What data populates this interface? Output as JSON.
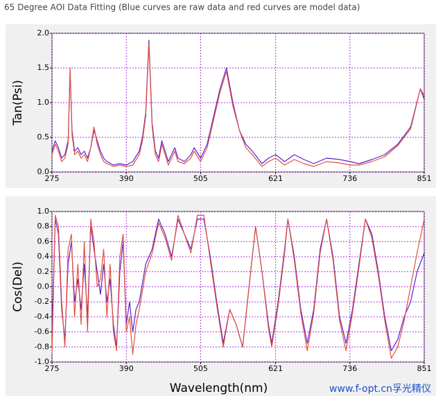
{
  "caption": "65 Degree AOI Data Fitting (Blue curves are raw data and red curves are model data)",
  "watermark": "www.f-opt.cn孚光精仪",
  "chart_data": [
    {
      "type": "line",
      "y_label": "Tan(Psi)",
      "x": [
        275,
        280,
        285,
        290,
        295,
        300,
        303,
        306,
        310,
        315,
        320,
        325,
        330,
        335,
        340,
        345,
        350,
        355,
        360,
        370,
        380,
        390,
        400,
        410,
        415,
        420,
        425,
        430,
        435,
        440,
        445,
        450,
        455,
        460,
        465,
        470,
        480,
        490,
        495,
        505,
        515,
        525,
        535,
        545,
        555,
        565,
        575,
        585,
        600,
        610,
        621,
        635,
        650,
        665,
        680,
        700,
        720,
        736,
        750,
        770,
        790,
        810,
        830,
        845,
        851
      ],
      "series": [
        {
          "color": "#5b1fd0",
          "values": [
            0.3,
            0.45,
            0.35,
            0.2,
            0.25,
            0.45,
            1.45,
            0.6,
            0.3,
            0.35,
            0.25,
            0.3,
            0.2,
            0.35,
            0.6,
            0.45,
            0.3,
            0.2,
            0.15,
            0.1,
            0.12,
            0.1,
            0.15,
            0.3,
            0.5,
            0.85,
            1.9,
            0.7,
            0.3,
            0.2,
            0.45,
            0.3,
            0.15,
            0.25,
            0.35,
            0.2,
            0.15,
            0.25,
            0.35,
            0.2,
            0.4,
            0.8,
            1.2,
            1.5,
            1.0,
            0.6,
            0.4,
            0.3,
            0.12,
            0.2,
            0.25,
            0.15,
            0.25,
            0.18,
            0.12,
            0.2,
            0.18,
            0.15,
            0.12,
            0.18,
            0.25,
            0.4,
            0.65,
            1.2,
            1.05
          ]
        },
        {
          "color": "#e0503c",
          "values": [
            0.25,
            0.4,
            0.3,
            0.15,
            0.2,
            0.4,
            1.5,
            0.55,
            0.25,
            0.3,
            0.2,
            0.25,
            0.15,
            0.35,
            0.65,
            0.4,
            0.25,
            0.15,
            0.12,
            0.08,
            0.1,
            0.08,
            0.1,
            0.25,
            0.45,
            0.8,
            1.85,
            0.65,
            0.25,
            0.15,
            0.4,
            0.25,
            0.1,
            0.2,
            0.3,
            0.15,
            0.12,
            0.2,
            0.3,
            0.15,
            0.35,
            0.75,
            1.15,
            1.45,
            0.95,
            0.6,
            0.35,
            0.25,
            0.08,
            0.15,
            0.2,
            0.1,
            0.18,
            0.12,
            0.08,
            0.15,
            0.13,
            0.1,
            0.1,
            0.15,
            0.22,
            0.38,
            0.62,
            1.2,
            1.1
          ]
        }
      ],
      "xlim": [
        275,
        851
      ],
      "ylim": [
        0,
        2
      ],
      "xticks": [
        275,
        390,
        505,
        621,
        736,
        851
      ],
      "yticks": [
        {
          "value": 0,
          "label": "0.0"
        },
        0.5,
        {
          "value": 1,
          "label": "1.0"
        },
        1.5,
        {
          "value": 2,
          "label": "2.0"
        }
      ],
      "grid": true,
      "grid_color": "#b030e0"
    },
    {
      "type": "line",
      "y_label": "Cos(Del)",
      "x_label": "Wavelength(nm)",
      "x": [
        275,
        280,
        285,
        290,
        295,
        300,
        305,
        310,
        315,
        320,
        325,
        330,
        335,
        340,
        345,
        350,
        355,
        360,
        365,
        370,
        375,
        380,
        385,
        390,
        395,
        400,
        405,
        410,
        420,
        430,
        440,
        450,
        460,
        470,
        480,
        490,
        500,
        510,
        520,
        530,
        540,
        550,
        560,
        570,
        580,
        590,
        600,
        610,
        615,
        625,
        635,
        640,
        650,
        660,
        670,
        680,
        690,
        700,
        710,
        720,
        730,
        740,
        750,
        760,
        770,
        780,
        790,
        800,
        810,
        820,
        830,
        840,
        851
      ],
      "series": [
        {
          "color": "#5b1fd0",
          "values": [
            -0.6,
            0.9,
            0.7,
            -0.3,
            -0.7,
            0.3,
            0.6,
            -0.2,
            0.1,
            -0.3,
            0.3,
            -0.4,
            0.8,
            0.5,
            0.2,
            -0.1,
            0.3,
            -0.2,
            0.1,
            -0.5,
            -0.8,
            0.2,
            0.6,
            -0.5,
            -0.2,
            -0.6,
            -0.3,
            -0.2,
            0.3,
            0.5,
            0.9,
            0.7,
            0.4,
            0.9,
            0.7,
            0.5,
            0.9,
            0.9,
            0.4,
            -0.2,
            -0.75,
            -0.3,
            -0.5,
            -0.8,
            0.0,
            0.8,
            0.2,
            -0.5,
            -0.75,
            -0.2,
            0.5,
            0.9,
            0.4,
            -0.3,
            -0.75,
            -0.3,
            0.5,
            0.9,
            0.4,
            -0.4,
            -0.75,
            -0.3,
            0.3,
            0.9,
            0.7,
            0.2,
            -0.4,
            -0.85,
            -0.7,
            -0.4,
            -0.2,
            0.2,
            0.45
          ]
        },
        {
          "color": "#e0503c",
          "values": [
            -0.9,
            0.95,
            0.8,
            -0.2,
            -0.8,
            0.5,
            0.7,
            -0.4,
            0.3,
            -0.5,
            0.6,
            -0.6,
            0.9,
            0.6,
            0.0,
            0.1,
            0.5,
            -0.4,
            0.3,
            -0.6,
            -0.85,
            0.4,
            0.7,
            -0.6,
            -0.4,
            -0.9,
            -0.5,
            -0.3,
            0.2,
            0.45,
            0.85,
            0.65,
            0.35,
            0.95,
            0.7,
            0.45,
            0.95,
            0.95,
            0.35,
            -0.25,
            -0.8,
            -0.3,
            -0.5,
            -0.8,
            0.0,
            0.8,
            0.2,
            -0.55,
            -0.8,
            -0.25,
            0.45,
            0.9,
            0.35,
            -0.35,
            -0.85,
            -0.35,
            0.45,
            0.9,
            0.35,
            -0.45,
            -0.85,
            -0.35,
            0.25,
            0.9,
            0.65,
            0.15,
            -0.45,
            -0.95,
            -0.8,
            -0.45,
            0.0,
            0.45,
            0.9
          ]
        }
      ],
      "xlim": [
        275,
        851
      ],
      "ylim": [
        -1,
        1
      ],
      "xticks": [
        275,
        390,
        505,
        621,
        736,
        851
      ],
      "yticks": [
        {
          "value": -1,
          "label": "-1.0"
        },
        -0.8,
        -0.6,
        -0.4,
        -0.2,
        {
          "value": 0,
          "label": "0.0"
        },
        0.2,
        0.4,
        0.6,
        0.8,
        {
          "value": 1,
          "label": "1.0"
        }
      ],
      "grid": true,
      "grid_color": "#b030e0"
    }
  ]
}
